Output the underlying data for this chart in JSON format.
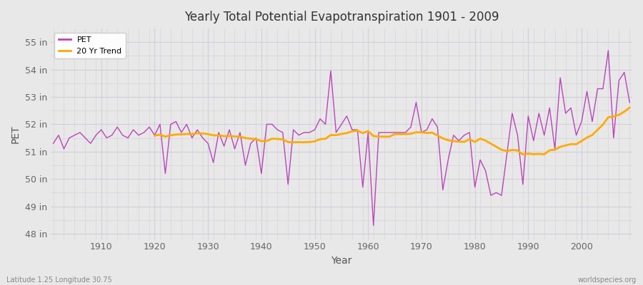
{
  "title": "Yearly Total Potential Evapotranspiration 1901 - 2009",
  "ylabel": "PET",
  "xlabel": "Year",
  "footer_left": "Latitude 1.25 Longitude 30.75",
  "footer_right": "worldspecies.org",
  "bg_color": "#e8e8e8",
  "plot_bg_color": "#e8e8e8",
  "pet_color": "#bb44bb",
  "trend_color": "#ffaa00",
  "ylim_min": 47.8,
  "ylim_max": 55.5,
  "years": [
    1901,
    1902,
    1903,
    1904,
    1905,
    1906,
    1907,
    1908,
    1909,
    1910,
    1911,
    1912,
    1913,
    1914,
    1915,
    1916,
    1917,
    1918,
    1919,
    1920,
    1921,
    1922,
    1923,
    1924,
    1925,
    1926,
    1927,
    1928,
    1929,
    1930,
    1931,
    1932,
    1933,
    1934,
    1935,
    1936,
    1937,
    1938,
    1939,
    1940,
    1941,
    1942,
    1943,
    1944,
    1945,
    1946,
    1947,
    1948,
    1949,
    1950,
    1951,
    1952,
    1953,
    1954,
    1955,
    1956,
    1957,
    1958,
    1959,
    1960,
    1961,
    1962,
    1963,
    1964,
    1965,
    1966,
    1967,
    1968,
    1969,
    1970,
    1971,
    1972,
    1973,
    1974,
    1975,
    1976,
    1977,
    1978,
    1979,
    1980,
    1981,
    1982,
    1983,
    1984,
    1985,
    1986,
    1987,
    1988,
    1989,
    1990,
    1991,
    1992,
    1993,
    1994,
    1995,
    1996,
    1997,
    1998,
    1999,
    2000,
    2001,
    2002,
    2003,
    2004,
    2005,
    2006,
    2007,
    2008,
    2009
  ],
  "pet_values": [
    51.3,
    51.6,
    51.1,
    51.5,
    51.6,
    51.7,
    51.5,
    51.3,
    51.6,
    51.8,
    51.5,
    51.6,
    51.9,
    51.6,
    51.5,
    51.8,
    51.6,
    51.7,
    51.9,
    51.6,
    52.0,
    50.2,
    52.0,
    52.1,
    51.7,
    52.0,
    51.5,
    51.8,
    51.5,
    51.3,
    50.6,
    51.7,
    51.2,
    51.8,
    51.1,
    51.7,
    50.5,
    51.3,
    51.5,
    50.2,
    52.0,
    52.0,
    51.8,
    51.7,
    49.8,
    51.8,
    51.6,
    51.7,
    51.7,
    51.8,
    52.2,
    52.0,
    53.95,
    51.7,
    52.0,
    52.3,
    51.8,
    51.8,
    49.7,
    51.7,
    48.3,
    51.7,
    51.7,
    51.7,
    51.7,
    51.7,
    51.7,
    51.9,
    52.8,
    51.7,
    51.8,
    52.2,
    51.9,
    49.6,
    50.7,
    51.6,
    51.4,
    51.6,
    51.7,
    49.7,
    50.7,
    50.3,
    49.4,
    49.5,
    49.4,
    50.9,
    52.4,
    51.6,
    49.8,
    52.3,
    51.4,
    52.4,
    51.6,
    52.6,
    51.1,
    53.7,
    52.4,
    52.6,
    51.6,
    52.1,
    53.2,
    52.1,
    53.3,
    53.3,
    54.7,
    51.5,
    53.6,
    53.9,
    52.8
  ],
  "ytick_positions": [
    48,
    49,
    50,
    51,
    52,
    53,
    54,
    55
  ],
  "ytick_labels": [
    "48 in",
    "49 in",
    "50 in",
    "51 in",
    "52 in",
    "53 in",
    "54 in",
    "55 in"
  ],
  "xtick_positions": [
    1910,
    1920,
    1930,
    1940,
    1950,
    1960,
    1970,
    1980,
    1990,
    2000
  ],
  "grid_color": "#d0d0d8",
  "legend_pet_label": "PET",
  "legend_trend_label": "20 Yr Trend"
}
